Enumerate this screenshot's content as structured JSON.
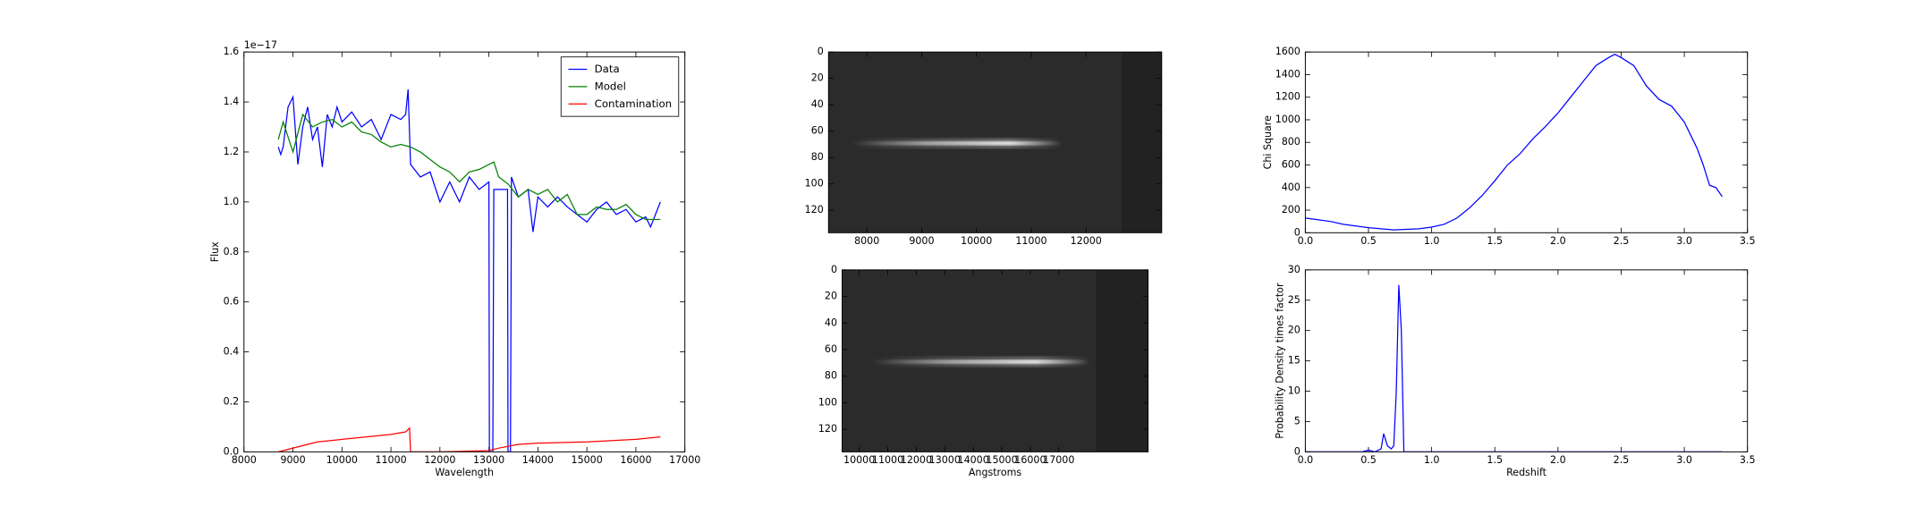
{
  "chart_data": [
    {
      "type": "line",
      "xlabel": "Wavelength",
      "ylabel": "Flux",
      "offset_label": "1e−17",
      "xlim": [
        8000,
        17000
      ],
      "xticks": [
        8000,
        9000,
        10000,
        11000,
        12000,
        13000,
        14000,
        15000,
        16000,
        17000
      ],
      "ylim": [
        0,
        1.6
      ],
      "yticks": [
        {
          "value": 0,
          "label": "0.0"
        },
        0.2,
        0.4,
        0.6,
        0.8,
        {
          "value": 1,
          "label": "1.0"
        },
        1.2,
        1.4,
        1.6
      ],
      "legend": "upper right",
      "series": [
        {
          "name": "Data",
          "color": "#0000ff",
          "x": [
            8700,
            8750,
            8800,
            8900,
            9000,
            9100,
            9200,
            9300,
            9400,
            9500,
            9600,
            9700,
            9800,
            9900,
            10000,
            10200,
            10400,
            10600,
            10800,
            11000,
            11200,
            11300,
            11350,
            11400,
            11600,
            11800,
            12000,
            12200,
            12400,
            12600,
            12800,
            13000,
            13010,
            13080,
            13100,
            13200,
            13380,
            13390,
            13440,
            13460,
            13600,
            13800,
            13900,
            14000,
            14200,
            14400,
            14600,
            14800,
            15000,
            15200,
            15400,
            15600,
            15800,
            16000,
            16200,
            16300,
            16500
          ],
          "values": [
            1.22,
            1.19,
            1.22,
            1.38,
            1.42,
            1.15,
            1.3,
            1.38,
            1.25,
            1.3,
            1.14,
            1.35,
            1.3,
            1.38,
            1.32,
            1.36,
            1.3,
            1.33,
            1.25,
            1.35,
            1.33,
            1.35,
            1.45,
            1.15,
            1.1,
            1.12,
            1.0,
            1.08,
            1.0,
            1.1,
            1.05,
            1.08,
            0.0,
            0.0,
            1.05,
            1.05,
            1.05,
            0.0,
            0.0,
            1.1,
            1.02,
            1.05,
            0.88,
            1.02,
            0.98,
            1.02,
            0.98,
            0.95,
            0.92,
            0.97,
            1.0,
            0.95,
            0.97,
            0.92,
            0.94,
            0.9,
            1.0
          ]
        },
        {
          "name": "Model",
          "color": "#008000",
          "x": [
            8700,
            8800,
            9000,
            9200,
            9400,
            9600,
            9800,
            10000,
            10200,
            10400,
            10600,
            10800,
            11000,
            11200,
            11400,
            11600,
            11800,
            12000,
            12200,
            12400,
            12600,
            12800,
            13000,
            13100,
            13200,
            13400,
            13600,
            13800,
            14000,
            14200,
            14400,
            14600,
            14800,
            15000,
            15200,
            15400,
            15600,
            15800,
            16000,
            16200,
            16500
          ],
          "values": [
            1.25,
            1.32,
            1.2,
            1.35,
            1.3,
            1.32,
            1.33,
            1.3,
            1.32,
            1.28,
            1.27,
            1.24,
            1.22,
            1.23,
            1.22,
            1.2,
            1.17,
            1.14,
            1.12,
            1.08,
            1.12,
            1.13,
            1.15,
            1.16,
            1.1,
            1.07,
            1.02,
            1.05,
            1.03,
            1.05,
            1.0,
            1.03,
            0.95,
            0.95,
            0.98,
            0.97,
            0.97,
            0.99,
            0.95,
            0.93,
            0.93
          ]
        },
        {
          "name": "Contamination",
          "color": "#ff0000",
          "x": [
            8700,
            8900,
            9200,
            9500,
            10000,
            10500,
            11000,
            11300,
            11380,
            11400,
            12000,
            13000,
            13200,
            13600,
            14000,
            15000,
            16000,
            16500
          ],
          "values": [
            0,
            0.01,
            0.025,
            0.04,
            0.05,
            0.06,
            0.07,
            0.08,
            0.095,
            0,
            0,
            0.005,
            0.015,
            0.03,
            0.035,
            0.04,
            0.05,
            0.06
          ]
        }
      ]
    },
    {
      "type": "image",
      "xlim": [
        7300,
        13380
      ],
      "xticks": [
        8000,
        9000,
        10000,
        11000,
        12000
      ],
      "ylim": [
        137,
        0
      ],
      "yticks": [
        0,
        20,
        40,
        60,
        80,
        100,
        120
      ]
    },
    {
      "type": "image",
      "xlabel": "Angstroms",
      "xlim": [
        9400,
        20130
      ],
      "xticks": [
        10000,
        11000,
        12000,
        13000,
        14000,
        15000,
        16000,
        17000
      ],
      "ylim": [
        137,
        0
      ],
      "yticks": [
        0,
        20,
        40,
        60,
        80,
        100,
        120
      ]
    },
    {
      "type": "line",
      "ylabel": "Chi Square",
      "xlim": [
        0,
        3.5
      ],
      "xticks": [
        {
          "value": 0,
          "label": "0.0"
        },
        0.5,
        {
          "value": 1,
          "label": "1.0"
        },
        1.5,
        {
          "value": 2,
          "label": "2.0"
        },
        2.5,
        {
          "value": 3,
          "label": "3.0"
        },
        3.5
      ],
      "ylim": [
        0,
        1600
      ],
      "yticks": [
        0,
        200,
        400,
        600,
        800,
        1000,
        1200,
        1400,
        1600
      ],
      "series": [
        {
          "color": "#0000ff",
          "x": [
            0,
            0.1,
            0.2,
            0.3,
            0.4,
            0.5,
            0.6,
            0.7,
            0.8,
            0.9,
            1.0,
            1.1,
            1.2,
            1.3,
            1.4,
            1.5,
            1.6,
            1.7,
            1.8,
            1.9,
            2.0,
            2.1,
            2.2,
            2.3,
            2.4,
            2.45,
            2.5,
            2.6,
            2.7,
            2.8,
            2.9,
            3.0,
            3.1,
            3.15,
            3.2,
            3.25,
            3.3
          ],
          "values": [
            130,
            115,
            100,
            75,
            60,
            45,
            35,
            25,
            30,
            35,
            50,
            75,
            130,
            220,
            330,
            460,
            600,
            700,
            830,
            940,
            1060,
            1200,
            1340,
            1480,
            1550,
            1580,
            1550,
            1480,
            1300,
            1180,
            1120,
            980,
            750,
            600,
            420,
            400,
            320
          ]
        }
      ]
    },
    {
      "type": "line",
      "xlabel": "Redshift",
      "ylabel": "Probability Density times factor",
      "xlim": [
        0,
        3.5
      ],
      "xticks": [
        {
          "value": 0,
          "label": "0.0"
        },
        0.5,
        {
          "value": 1,
          "label": "1.0"
        },
        1.5,
        {
          "value": 2,
          "label": "2.0"
        },
        2.5,
        {
          "value": 3,
          "label": "3.0"
        },
        3.5
      ],
      "ylim": [
        0,
        30
      ],
      "yticks": [
        0,
        5,
        10,
        15,
        20,
        25,
        30
      ],
      "series": [
        {
          "color": "#0000ff",
          "x": [
            0,
            0.45,
            0.5,
            0.55,
            0.6,
            0.62,
            0.65,
            0.68,
            0.7,
            0.72,
            0.74,
            0.76,
            0.78,
            0.8,
            3.3
          ],
          "values": [
            0,
            0,
            0.3,
            0,
            0.5,
            3,
            1,
            0.5,
            1,
            10,
            27.5,
            20,
            0,
            0,
            0
          ]
        }
      ]
    }
  ]
}
